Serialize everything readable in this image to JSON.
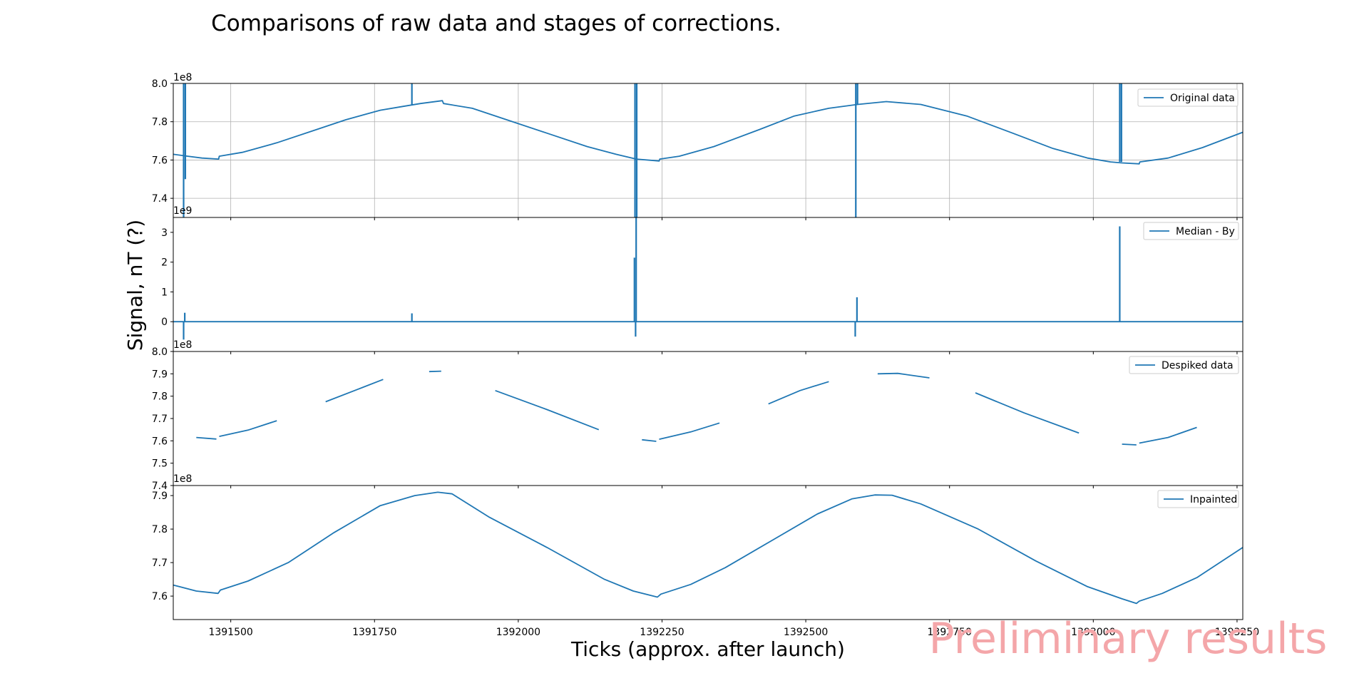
{
  "figure": {
    "title": "Comparisons of raw data and stages of corrections.",
    "xlabel": "Ticks (approx. after launch)",
    "ylabel": "Signal, nT (?)",
    "watermark": "Preliminary results",
    "line_color": "#1f77b4",
    "grid_color": "#b0b0b0",
    "watermark_color": "#f4a6a9"
  },
  "chart_data": [
    {
      "type": "line",
      "legend": "Original data",
      "legend_position": "upper right",
      "grid": true,
      "offset_label": "1e8",
      "xlim": [
        1391400,
        1393260
      ],
      "ylim": [
        7.3,
        8.0
      ],
      "xticks": [
        1391500,
        1391750,
        1392000,
        1392250,
        1392500,
        1392750,
        1393000,
        1393250
      ],
      "yticks": [
        7.4,
        7.6,
        7.8,
        8.0
      ],
      "ytick_labels": [
        "7.4",
        "7.6",
        "7.8",
        "8.0"
      ],
      "x": [
        1391400,
        1391425,
        1391450,
        1391479,
        1391480,
        1391520,
        1391580,
        1391650,
        1391700,
        1391760,
        1391800,
        1391830,
        1391868,
        1391870,
        1391920,
        1391980,
        1392050,
        1392120,
        1392170,
        1392205,
        1392245,
        1392246,
        1392280,
        1392340,
        1392420,
        1392480,
        1392540,
        1392590,
        1392640,
        1392700,
        1392780,
        1392860,
        1392930,
        1392990,
        1393030,
        1393050,
        1393080,
        1393081,
        1393130,
        1393190,
        1393260
      ],
      "y": [
        7.63,
        7.62,
        7.61,
        7.605,
        7.62,
        7.64,
        7.69,
        7.76,
        7.81,
        7.86,
        7.88,
        7.895,
        7.91,
        7.895,
        7.87,
        7.81,
        7.74,
        7.67,
        7.63,
        7.605,
        7.595,
        7.605,
        7.62,
        7.67,
        7.76,
        7.83,
        7.87,
        7.89,
        7.905,
        7.89,
        7.83,
        7.74,
        7.66,
        7.61,
        7.59,
        7.585,
        7.58,
        7.59,
        7.61,
        7.665,
        7.745
      ],
      "spikes": [
        {
          "x": 1391418,
          "y_low": 7.3,
          "y_high": 8.0
        },
        {
          "x": 1391421,
          "y_low": 7.5,
          "y_high": 8.0
        },
        {
          "x": 1391815,
          "y_low": 7.89,
          "y_high": 8.0
        },
        {
          "x": 1392203,
          "y_low": 7.3,
          "y_high": 8.0
        },
        {
          "x": 1392206,
          "y_low": 7.3,
          "y_high": 8.0
        },
        {
          "x": 1392587,
          "y_low": 7.3,
          "y_high": 8.0
        },
        {
          "x": 1392590,
          "y_low": 7.89,
          "y_high": 8.0
        },
        {
          "x": 1393046,
          "y_low": 7.59,
          "y_high": 8.0
        },
        {
          "x": 1393049,
          "y_low": 7.59,
          "y_high": 8.0
        }
      ]
    },
    {
      "type": "line",
      "legend": "Median - By",
      "legend_position": "upper right",
      "grid": false,
      "offset_label": "1e9",
      "xlim": [
        1391400,
        1393260
      ],
      "ylim": [
        -1.0,
        3.5
      ],
      "yticks": [
        0,
        1,
        2,
        3
      ],
      "ytick_labels": [
        "0",
        "1",
        "2",
        "3"
      ],
      "x": [
        1391400,
        1393260
      ],
      "y": [
        0,
        0
      ],
      "spikes": [
        {
          "x": 1391418,
          "y_low": -0.6,
          "y_high": 0.0
        },
        {
          "x": 1391420,
          "y_low": 0.0,
          "y_high": 0.3
        },
        {
          "x": 1391815,
          "y_low": 0.0,
          "y_high": 0.28
        },
        {
          "x": 1392202,
          "y_low": 0.0,
          "y_high": 2.15
        },
        {
          "x": 1392204,
          "y_low": -0.5,
          "y_high": 0.0
        },
        {
          "x": 1392205,
          "y_low": 0.0,
          "y_high": 3.5
        },
        {
          "x": 1392586,
          "y_low": -0.5,
          "y_high": 0.0
        },
        {
          "x": 1392589,
          "y_low": 0.0,
          "y_high": 0.82
        },
        {
          "x": 1393046,
          "y_low": 0.0,
          "y_high": 3.2
        }
      ]
    },
    {
      "type": "line",
      "legend": "Despiked data",
      "legend_position": "upper right",
      "grid": false,
      "offset_label": "1e8",
      "xlim": [
        1391400,
        1393260
      ],
      "ylim": [
        7.4,
        8.0
      ],
      "yticks": [
        7.4,
        7.5,
        7.6,
        7.7,
        7.8,
        7.9,
        8.0
      ],
      "ytick_labels": [
        "7.4",
        "7.5",
        "7.6",
        "7.7",
        "7.8",
        "7.9",
        "8.0"
      ],
      "segments": [
        {
          "x": [
            1391440,
            1391475
          ],
          "y": [
            7.615,
            7.608
          ]
        },
        {
          "x": [
            1391480,
            1391530,
            1391580
          ],
          "y": [
            7.62,
            7.648,
            7.69
          ]
        },
        {
          "x": [
            1391665,
            1391720,
            1391765
          ],
          "y": [
            7.775,
            7.83,
            7.875
          ]
        },
        {
          "x": [
            1391845,
            1391866
          ],
          "y": [
            7.91,
            7.912
          ]
        },
        {
          "x": [
            1391960,
            1392050,
            1392140
          ],
          "y": [
            7.825,
            7.74,
            7.65
          ]
        },
        {
          "x": [
            1392215,
            1392240
          ],
          "y": [
            7.605,
            7.598
          ]
        },
        {
          "x": [
            1392245,
            1392300,
            1392350
          ],
          "y": [
            7.607,
            7.64,
            7.68
          ]
        },
        {
          "x": [
            1392435,
            1392490,
            1392540
          ],
          "y": [
            7.765,
            7.825,
            7.865
          ]
        },
        {
          "x": [
            1392625,
            1392660,
            1392715
          ],
          "y": [
            7.9,
            7.902,
            7.882
          ]
        },
        {
          "x": [
            1392795,
            1392880,
            1392975
          ],
          "y": [
            7.815,
            7.725,
            7.635
          ]
        },
        {
          "x": [
            1393050,
            1393075
          ],
          "y": [
            7.585,
            7.582
          ]
        },
        {
          "x": [
            1393080,
            1393130,
            1393180
          ],
          "y": [
            7.59,
            7.615,
            7.66
          ]
        }
      ]
    },
    {
      "type": "line",
      "legend": "Inpainted",
      "legend_position": "upper right",
      "grid": false,
      "offset_label": "1e8",
      "xlim": [
        1391400,
        1393260
      ],
      "ylim": [
        7.53,
        7.93
      ],
      "yticks": [
        7.6,
        7.7,
        7.8,
        7.9
      ],
      "ytick_labels": [
        "7.6",
        "7.7",
        "7.8",
        "7.9"
      ],
      "xticks": [
        1391500,
        1391750,
        1392000,
        1392250,
        1392500,
        1392750,
        1393000,
        1393250
      ],
      "xtick_labels": [
        "1391500",
        "1391750",
        "1392000",
        "1392250",
        "1392500",
        "1392750",
        "1393000",
        "1393250"
      ],
      "x": [
        1391400,
        1391440,
        1391478,
        1391482,
        1391530,
        1391600,
        1391680,
        1391760,
        1391820,
        1391860,
        1391885,
        1391950,
        1392050,
        1392150,
        1392200,
        1392242,
        1392248,
        1392300,
        1392360,
        1392440,
        1392520,
        1392580,
        1392620,
        1392650,
        1392700,
        1392800,
        1392900,
        1392990,
        1393050,
        1393075,
        1393080,
        1393120,
        1393180,
        1393260
      ],
      "y": [
        7.633,
        7.615,
        7.608,
        7.618,
        7.645,
        7.7,
        7.79,
        7.87,
        7.9,
        7.91,
        7.905,
        7.835,
        7.745,
        7.65,
        7.615,
        7.597,
        7.606,
        7.635,
        7.685,
        7.765,
        7.845,
        7.89,
        7.902,
        7.901,
        7.875,
        7.8,
        7.705,
        7.628,
        7.592,
        7.578,
        7.585,
        7.608,
        7.655,
        7.745
      ]
    }
  ]
}
